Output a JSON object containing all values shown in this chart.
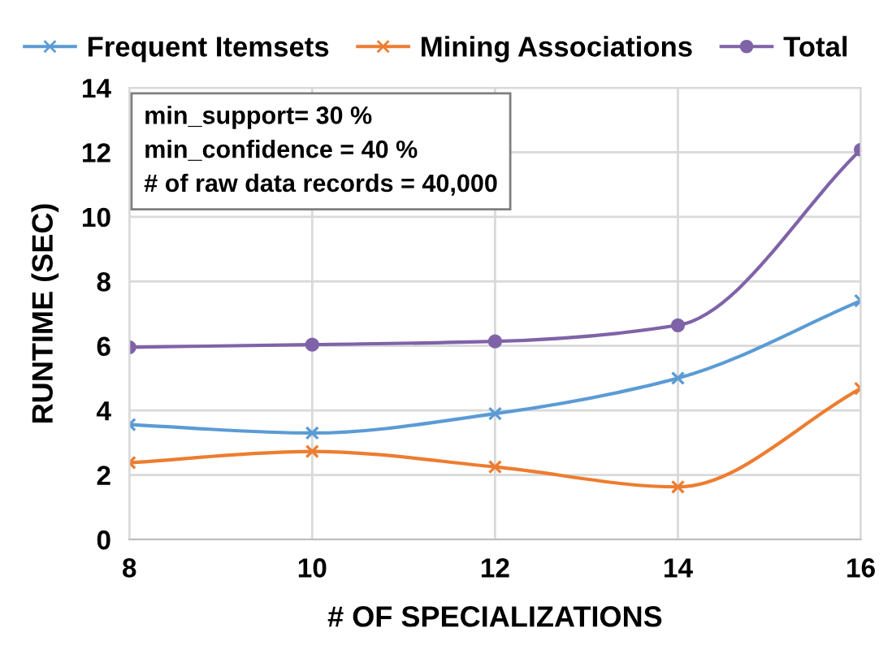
{
  "chart_data": {
    "type": "line",
    "xlabel": "# OF SPECIALIZATIONS",
    "ylabel": "RUNTIME (SEC)",
    "x": [
      8,
      10,
      12,
      14,
      16
    ],
    "series": [
      {
        "name": "Frequent Itemsets",
        "color": "#5b9bd5",
        "marker": "cross",
        "values": [
          3.56,
          3.3,
          3.9,
          5.0,
          7.4
        ]
      },
      {
        "name": "Mining Associations",
        "color": "#ed7d31",
        "marker": "cross",
        "values": [
          2.38,
          2.73,
          2.25,
          1.63,
          4.68
        ]
      },
      {
        "name": "Total",
        "color": "#7f63a8",
        "marker": "circle",
        "values": [
          5.96,
          6.04,
          6.14,
          6.64,
          12.08
        ]
      }
    ],
    "xlim": [
      8,
      16
    ],
    "xticks": [
      8,
      10,
      12,
      14,
      16
    ],
    "ylim": [
      0,
      14
    ],
    "yticks": [
      0,
      2,
      4,
      6,
      8,
      10,
      12,
      14
    ],
    "grid": true,
    "legend": "top",
    "line_style": "solid",
    "annotations": [
      "min_support= 30 %\nmin_confidence = 40 %\n# of raw data records = 40,000"
    ]
  }
}
